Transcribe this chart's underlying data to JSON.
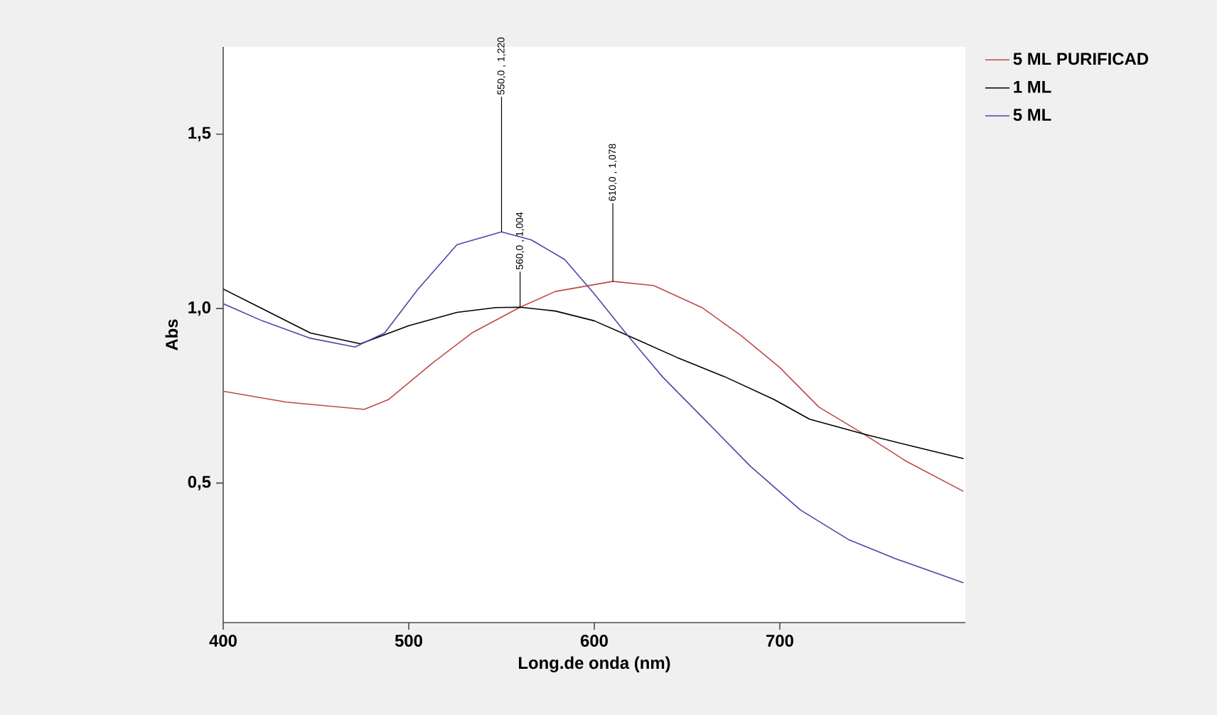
{
  "chart_data": {
    "type": "line",
    "xlabel": "Long.de onda (nm)",
    "ylabel": "Abs",
    "xlim": [
      400,
      800
    ],
    "ylim": [
      0.1,
      1.75
    ],
    "xticks": [
      400,
      500,
      600,
      700
    ],
    "yticks": [
      {
        "value": 0.5,
        "label": "0,5"
      },
      {
        "value": 1.0,
        "label": "1,0"
      },
      {
        "value": 1.5,
        "label": "1,5"
      }
    ],
    "legend": "top right",
    "grid": false,
    "marker": "none",
    "line_style": "solid",
    "series": [
      {
        "name": "5 ML PURIFICAD",
        "color": "#c04848",
        "x": [
          400,
          434,
          476,
          489,
          513,
          534,
          560,
          579,
          610,
          632,
          658,
          679,
          700,
          721,
          745,
          768,
          799
        ],
        "values": [
          0.763,
          0.732,
          0.711,
          0.739,
          0.845,
          0.93,
          1.004,
          1.049,
          1.078,
          1.066,
          1.003,
          0.923,
          0.831,
          0.718,
          0.641,
          0.563,
          0.476
        ]
      },
      {
        "name": "1 ML",
        "color": "#000000",
        "x": [
          400,
          421,
          447,
          474,
          500,
          526,
          547,
          560,
          579,
          600,
          618,
          645,
          671,
          697,
          716,
          745,
          771,
          799
        ],
        "values": [
          1.056,
          1.0,
          0.93,
          0.899,
          0.951,
          0.989,
          1.003,
          1.004,
          0.993,
          0.965,
          0.923,
          0.859,
          0.803,
          0.739,
          0.683,
          0.641,
          0.606,
          0.57
        ]
      },
      {
        "name": "5 ML",
        "color": "#4848a8",
        "x": [
          400,
          421,
          447,
          471,
          487,
          505,
          526,
          550,
          566,
          584,
          600,
          618,
          637,
          658,
          684,
          711,
          737,
          763,
          799
        ],
        "values": [
          1.014,
          0.965,
          0.915,
          0.89,
          0.93,
          1.056,
          1.183,
          1.22,
          1.197,
          1.141,
          1.042,
          0.923,
          0.803,
          0.69,
          0.549,
          0.423,
          0.338,
          0.282,
          0.214
        ]
      }
    ],
    "annotations": [
      {
        "text": "550,0 , 1,220",
        "x": 550,
        "y": 1.22
      },
      {
        "text": "560,0 , 1,004",
        "x": 560,
        "y": 1.004
      },
      {
        "text": "610,0 , 1,078",
        "x": 610,
        "y": 1.078
      }
    ]
  }
}
